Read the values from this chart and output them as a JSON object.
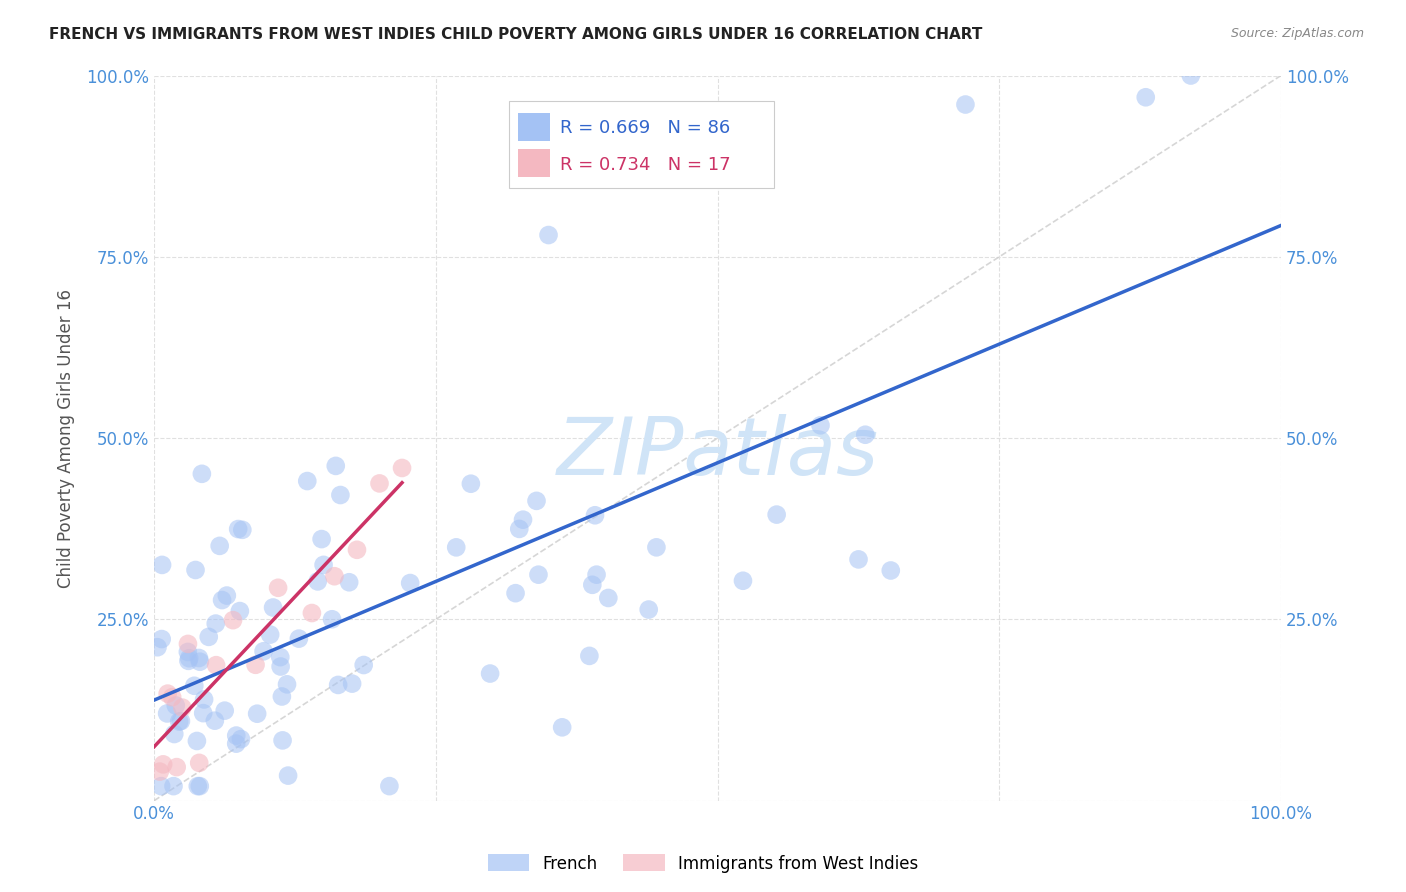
{
  "title": "FRENCH VS IMMIGRANTS FROM WEST INDIES CHILD POVERTY AMONG GIRLS UNDER 16 CORRELATION CHART",
  "source": "Source: ZipAtlas.com",
  "ylabel": "Child Poverty Among Girls Under 16",
  "legend_label1": "French",
  "legend_label2": "Immigrants from West Indies",
  "R1": 0.669,
  "N1": 86,
  "R2": 0.734,
  "N2": 17,
  "color_blue": "#a4c2f4",
  "color_pink": "#f4b8c1",
  "color_line_blue": "#3366cc",
  "color_line_pink": "#cc3366",
  "color_diag": "#cccccc",
  "watermark": "ZIPatlas",
  "watermark_color": "#d0e4f7",
  "tick_color": "#4a90d9",
  "ylabel_color": "#555555",
  "title_color": "#222222",
  "source_color": "#888888"
}
